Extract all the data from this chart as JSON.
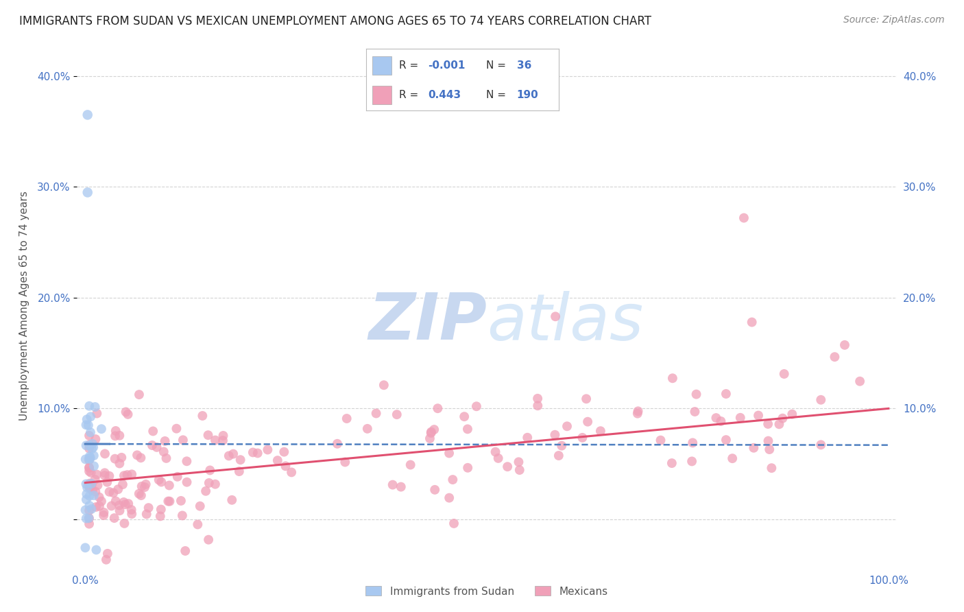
{
  "title": "IMMIGRANTS FROM SUDAN VS MEXICAN UNEMPLOYMENT AMONG AGES 65 TO 74 YEARS CORRELATION CHART",
  "source": "Source: ZipAtlas.com",
  "ylabel": "Unemployment Among Ages 65 to 74 years",
  "color_blue": "#A8C8F0",
  "color_pink": "#F0A0B8",
  "color_blue_line": "#5080C0",
  "color_pink_line": "#E05070",
  "color_text_blue": "#4472C4",
  "color_grid": "#C8C8C8",
  "watermark_color": "#C8D8F0",
  "background_color": "#FFFFFF",
  "yticks": [
    0.0,
    0.1,
    0.2,
    0.3,
    0.4
  ],
  "ytick_labels": [
    "",
    "10.0%",
    "20.0%",
    "30.0%",
    "40.0%"
  ],
  "xlim": [
    -0.01,
    1.01
  ],
  "ylim": [
    -0.045,
    0.43
  ]
}
